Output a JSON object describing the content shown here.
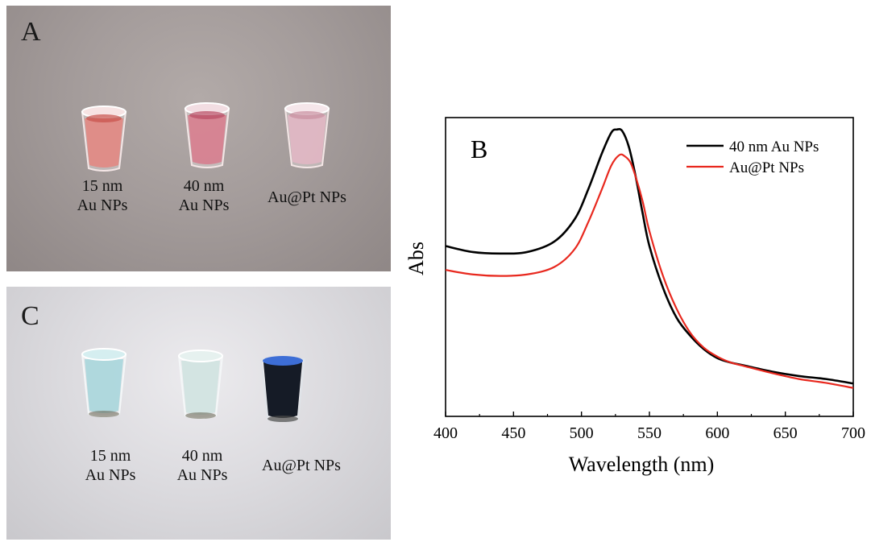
{
  "panels": {
    "a": {
      "letter": "A",
      "vials": [
        {
          "line1": "15 nm",
          "line2": "Au NPs",
          "liquid": "#e4857f"
        },
        {
          "line1": "40 nm",
          "line2": "Au NPs",
          "liquid": "#d87a8c"
        },
        {
          "line1": "Au@Pt NPs",
          "line2": "",
          "liquid": "#e3b6c4"
        }
      ]
    },
    "b": {
      "letter": "B"
    },
    "c": {
      "letter": "C",
      "vials": [
        {
          "line1": "15 nm",
          "line2": "Au NPs",
          "liquid": "#a9d6dc"
        },
        {
          "line1": "40 nm",
          "line2": "Au NPs",
          "liquid": "#cfe2e0"
        },
        {
          "line1": "Au@Pt NPs",
          "line2": "",
          "liquid": "#151b26"
        }
      ]
    }
  },
  "chart_data": {
    "type": "line",
    "title": "",
    "xlabel": "Wavelength (nm)",
    "ylabel": "Abs",
    "xlim": [
      400,
      700
    ],
    "ylim": [
      0,
      1
    ],
    "xticks": [
      400,
      450,
      500,
      550,
      600,
      650,
      700
    ],
    "yticks_labeled": false,
    "grid": false,
    "legend_position": "top-right",
    "series": [
      {
        "name": "40 nm Au NPs",
        "color": "#000000",
        "x": [
          400,
          420,
          440,
          460,
          480,
          495,
          505,
          515,
          522,
          526,
          530,
          535,
          540,
          545,
          550,
          560,
          570,
          580,
          590,
          600,
          610,
          620,
          640,
          660,
          680,
          700
        ],
        "y": [
          0.57,
          0.55,
          0.545,
          0.55,
          0.585,
          0.66,
          0.76,
          0.88,
          0.95,
          0.96,
          0.955,
          0.9,
          0.8,
          0.68,
          0.57,
          0.43,
          0.33,
          0.27,
          0.225,
          0.195,
          0.18,
          0.17,
          0.15,
          0.135,
          0.125,
          0.11
        ]
      },
      {
        "name": "Au@Pt NPs",
        "color": "#e8281e",
        "x": [
          400,
          420,
          440,
          460,
          480,
          495,
          505,
          515,
          522,
          528,
          532,
          536,
          540,
          545,
          550,
          560,
          570,
          580,
          590,
          600,
          610,
          620,
          640,
          660,
          680,
          700
        ],
        "y": [
          0.49,
          0.475,
          0.47,
          0.475,
          0.5,
          0.56,
          0.65,
          0.76,
          0.84,
          0.875,
          0.87,
          0.85,
          0.8,
          0.72,
          0.62,
          0.47,
          0.36,
          0.28,
          0.23,
          0.2,
          0.18,
          0.168,
          0.145,
          0.125,
          0.112,
          0.095
        ]
      }
    ]
  }
}
